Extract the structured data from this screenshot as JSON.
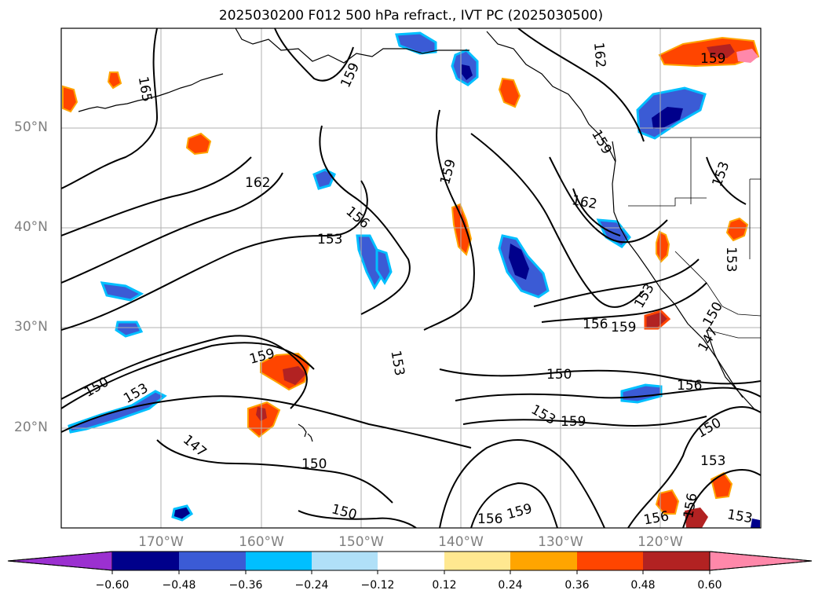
{
  "title": "2025030200 F012 500 hPa refract., IVT PC (2025030500)",
  "map": {
    "lat_labels": [
      "50°N",
      "40°N",
      "30°N",
      "20°N"
    ],
    "lon_labels": [
      "170°W",
      "160°W",
      "150°W",
      "140°W",
      "130°W",
      "120°W"
    ],
    "contour_labels": [
      "165",
      "159",
      "162",
      "159",
      "162",
      "159",
      "153",
      "162",
      "156",
      "153",
      "153",
      "159",
      "156",
      "159",
      "150",
      "153",
      "153",
      "150",
      "159",
      "156",
      "153",
      "150",
      "150",
      "159",
      "153",
      "147",
      "150",
      "153",
      "147",
      "156",
      "159",
      "156",
      "156",
      "153",
      "150"
    ],
    "colors": {
      "land_lines": "#000000",
      "grid": "#b0b0b0",
      "contour": "#000000"
    }
  },
  "colorbar": {
    "ticks": [
      "−0.60",
      "−0.48",
      "−0.36",
      "−0.24",
      "−0.12",
      "0.12",
      "0.24",
      "0.36",
      "0.48",
      "0.60"
    ],
    "colors": [
      "#9b30d0",
      "#00008b",
      "#3b5bd5",
      "#00bfff",
      "#b0e0f8",
      "#ffffff",
      "#ffe890",
      "#ffa500",
      "#ff4500",
      "#b22222",
      "#ff88aa"
    ]
  }
}
